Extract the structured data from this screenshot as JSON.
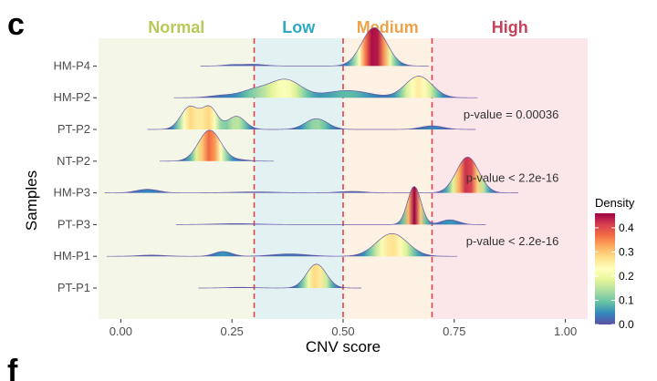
{
  "panel": {
    "letter": "c",
    "next_letter": "f"
  },
  "chart_data": {
    "type": "ridgeline",
    "xlabel": "CNV score",
    "ylabel": "Samples",
    "xlim": [
      -0.05,
      1.05
    ],
    "x_ticks": [
      0,
      0.25,
      0.5,
      0.75,
      1.0
    ],
    "x_tick_labels": [
      "0.00",
      "0.25",
      "0.50",
      "0.75",
      "1.00"
    ],
    "thresholds": [
      0.3,
      0.5,
      0.7
    ],
    "threshold_color": "#e0454f",
    "categories": [
      {
        "label": "Normal",
        "from": -0.05,
        "to": 0.3,
        "color": "#b9c856",
        "fill": "#f4f6e8"
      },
      {
        "label": "Low",
        "from": 0.3,
        "to": 0.5,
        "color": "#2fa8c4",
        "fill": "#e2f2f3"
      },
      {
        "label": "Medium",
        "from": 0.5,
        "to": 0.7,
        "color": "#eea24a",
        "fill": "#fcf1e2"
      },
      {
        "label": "High",
        "from": 0.7,
        "to": 1.05,
        "color": "#c8415b",
        "fill": "#fbe6ea"
      }
    ],
    "series": [
      {
        "name": "PT-P1",
        "components": [
          [
            0.44,
            0.022,
            1.0
          ],
          [
            0.27,
            0.03,
            0.03
          ]
        ]
      },
      {
        "name": "HM-P1",
        "components": [
          [
            0.61,
            0.035,
            0.95
          ],
          [
            0.23,
            0.02,
            0.2
          ],
          [
            0.07,
            0.03,
            0.05
          ],
          [
            0.38,
            0.04,
            0.1
          ]
        ]
      },
      {
        "name": "PT-P3",
        "components": [
          [
            0.66,
            0.015,
            1.6
          ],
          [
            0.74,
            0.02,
            0.2
          ],
          [
            0.26,
            0.05,
            0.04
          ]
        ]
      },
      {
        "name": "HM-P3",
        "components": [
          [
            0.78,
            0.025,
            1.5
          ],
          [
            0.06,
            0.025,
            0.15
          ],
          [
            0.52,
            0.03,
            0.06
          ],
          [
            0.3,
            0.05,
            0.04
          ]
        ]
      },
      {
        "name": "NT-P2",
        "components": [
          [
            0.2,
            0.025,
            1.3
          ],
          [
            0.27,
            0.02,
            0.05
          ]
        ]
      },
      {
        "name": "PT-P2",
        "components": [
          [
            0.155,
            0.02,
            0.95
          ],
          [
            0.2,
            0.017,
            0.9
          ],
          [
            0.26,
            0.02,
            0.55
          ],
          [
            0.44,
            0.025,
            0.45
          ],
          [
            0.7,
            0.025,
            0.15
          ]
        ]
      },
      {
        "name": "HM-P2",
        "components": [
          [
            0.67,
            0.03,
            0.9
          ],
          [
            0.37,
            0.035,
            0.75
          ],
          [
            0.3,
            0.03,
            0.3
          ],
          [
            0.51,
            0.05,
            0.3
          ],
          [
            0.23,
            0.03,
            0.1
          ]
        ]
      },
      {
        "name": "HM-P4",
        "components": [
          [
            0.57,
            0.028,
            1.6
          ],
          [
            0.3,
            0.025,
            0.07
          ],
          [
            0.25,
            0.02,
            0.05
          ]
        ]
      }
    ],
    "annotations": [
      {
        "text": "p-value = 0.00036",
        "x": 0.985,
        "row": "PT-P2"
      },
      {
        "text": "p-value < 2.2e-16",
        "x": 0.985,
        "row": "HM-P3"
      },
      {
        "text": "p-value < 2.2e-16",
        "x": 0.985,
        "row": "HM-P1"
      }
    ],
    "legend": {
      "title": "Density",
      "ticks": [
        0.0,
        0.1,
        0.2,
        0.3,
        0.4
      ],
      "tick_labels": [
        "0.0",
        "0.1",
        "0.2",
        "0.3",
        "0.4"
      ],
      "range": [
        0.0,
        0.46
      ],
      "colors": [
        "#5e4fa2",
        "#3288bd",
        "#66c2a5",
        "#abdda4",
        "#e6f598",
        "#ffffbf",
        "#fee08b",
        "#fdae61",
        "#f46d43",
        "#d53e4f",
        "#9e0142"
      ]
    }
  }
}
